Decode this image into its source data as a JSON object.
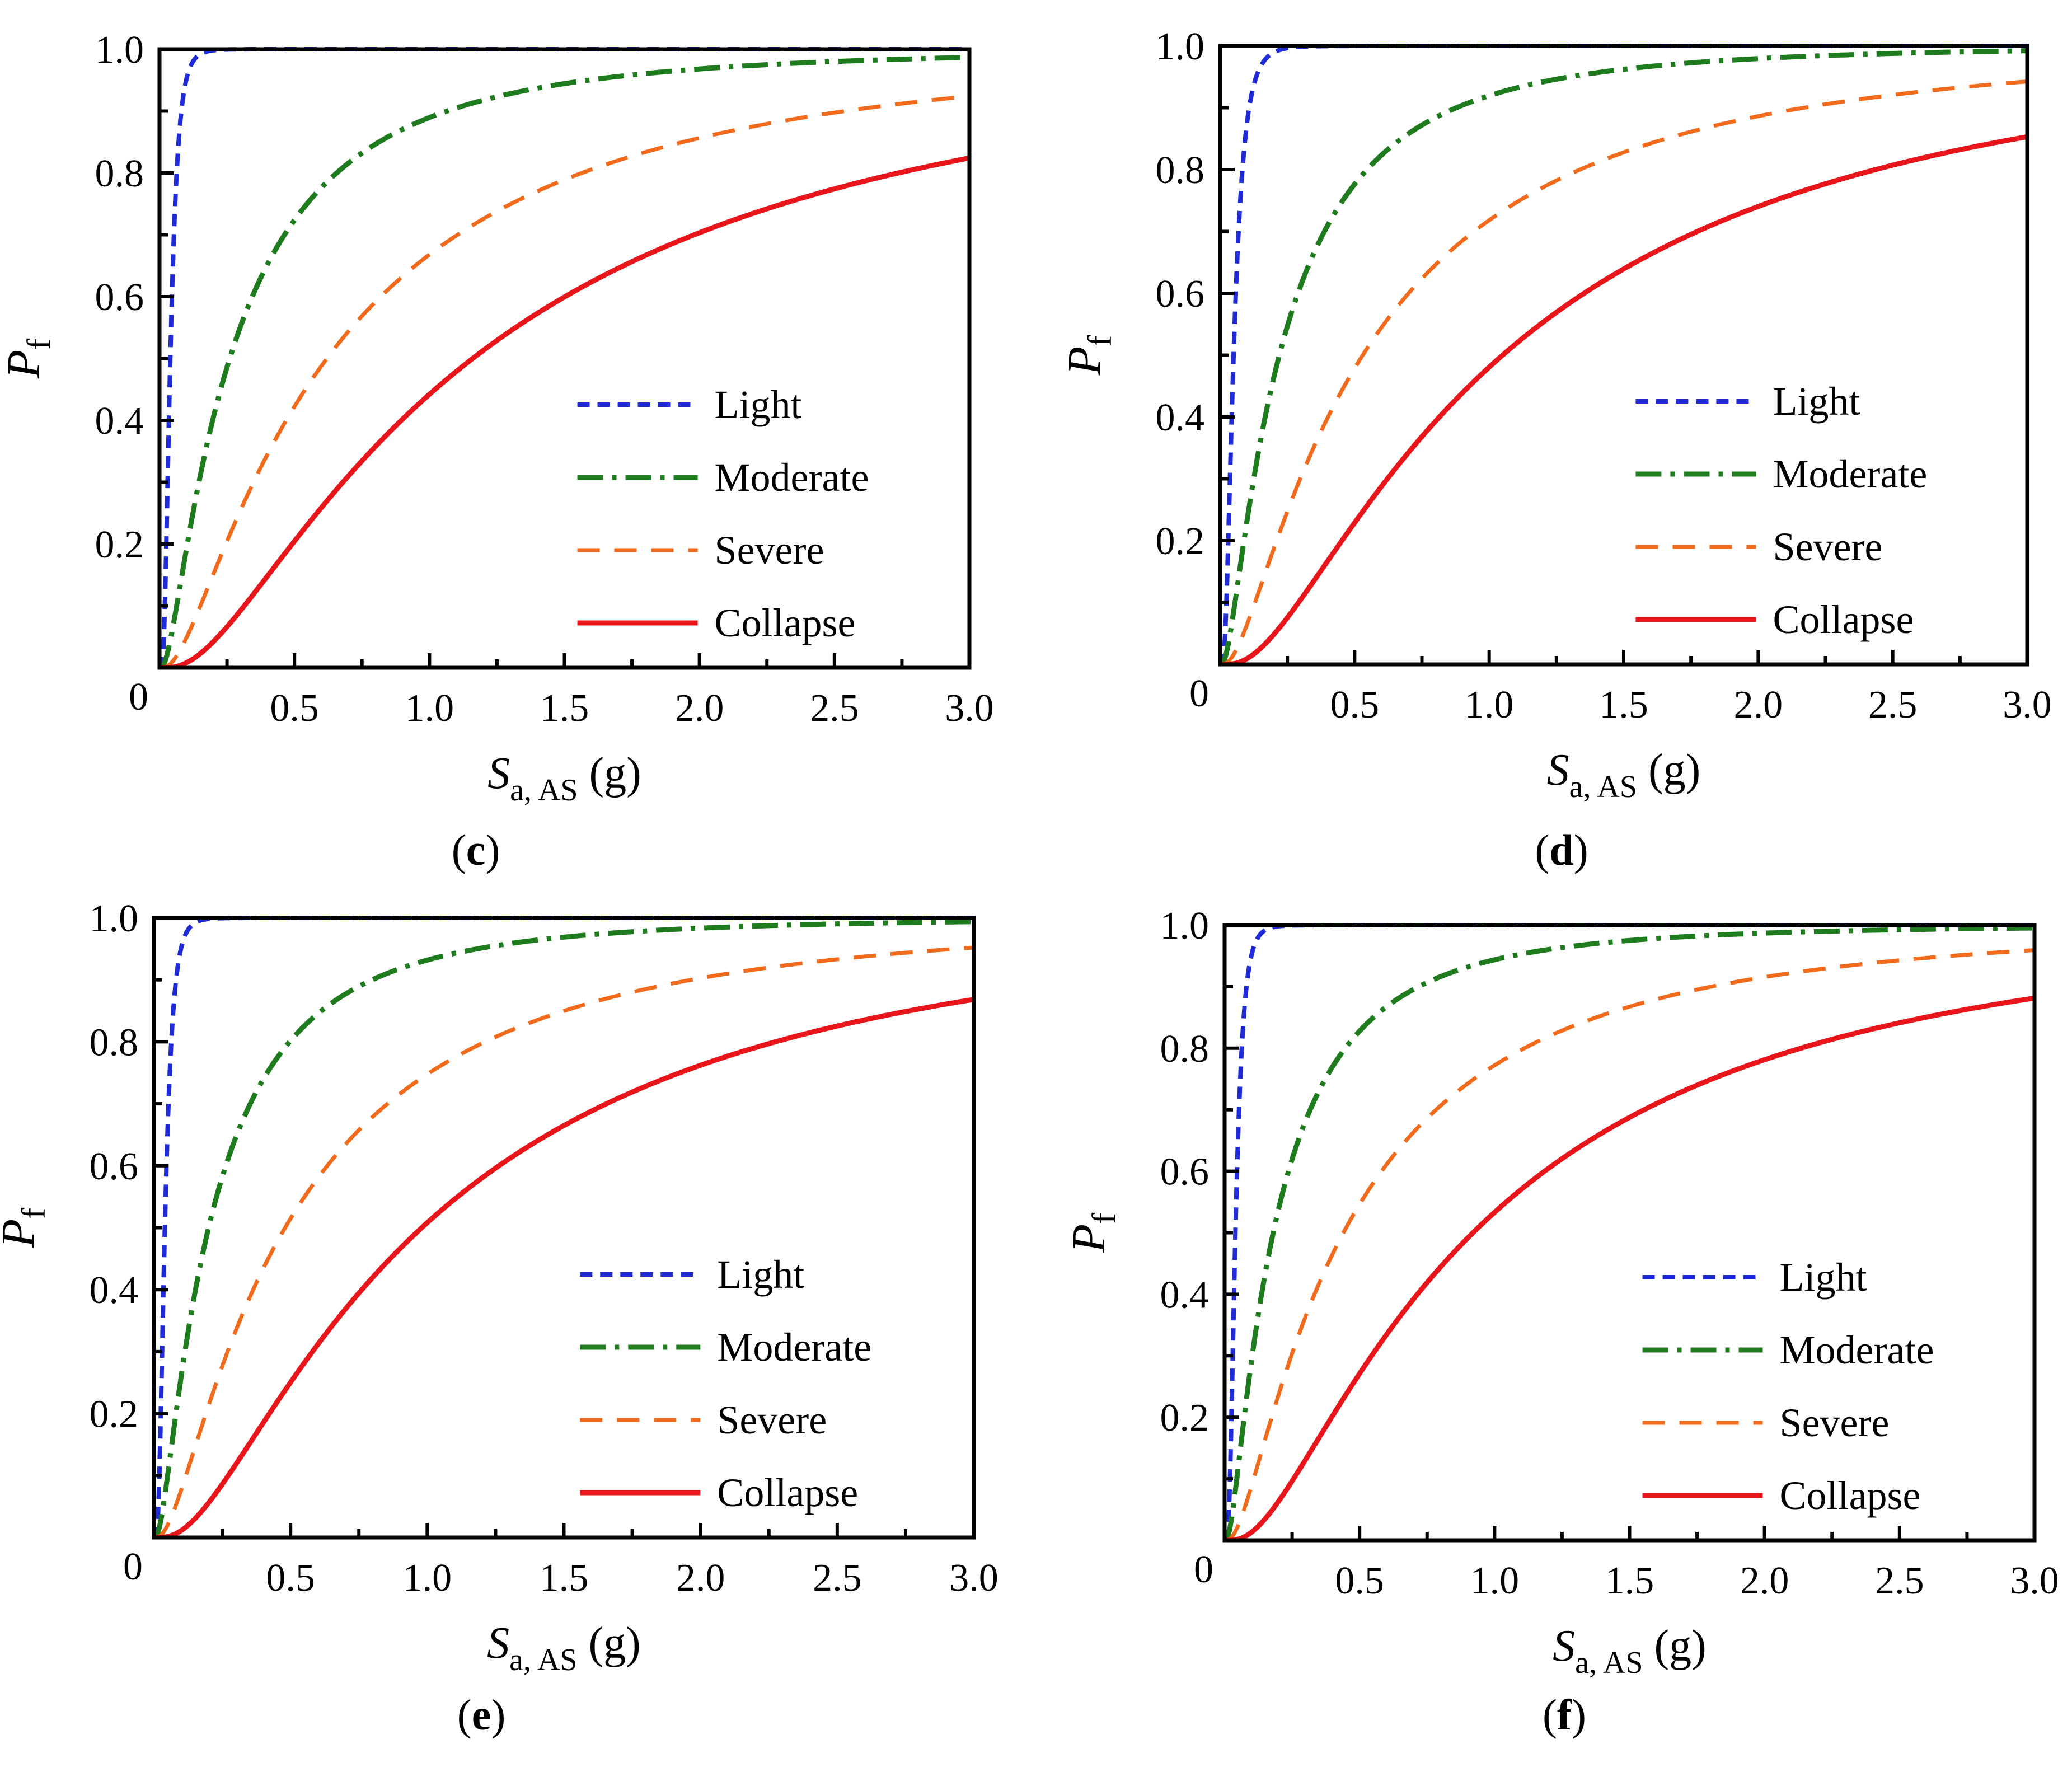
{
  "figure": {
    "panels_note": "Fragility curves, four panels"
  },
  "legend_entries": [
    "Light",
    "Moderate",
    "Severe",
    "Collapse"
  ],
  "colors": {
    "Light": "#1f2bd6",
    "Moderate": "#1e7b1e",
    "Severe": "#f26a1b",
    "Collapse": "#e8151b",
    "axis": "#000000"
  },
  "chart_data": [
    {
      "panel_label": "c",
      "type": "line",
      "xlabel_main": "S",
      "xlabel_sub": "a, AS",
      "xlabel_unit": " (g)",
      "ylabel_main": "P",
      "ylabel_sub": "f",
      "xlim": [
        0,
        3.0
      ],
      "ylim": [
        0,
        1.0
      ],
      "x_ticks": [
        "0",
        "0.5",
        "1.0",
        "1.5",
        "2.0",
        "2.5",
        "3.0"
      ],
      "y_ticks": [
        "0.2",
        "0.4",
        "0.6",
        "0.8",
        "1.0"
      ],
      "legend": "lower-right",
      "series": [
        {
          "name": "Light",
          "median": 0.04,
          "beta": 0.55
        },
        {
          "name": "Moderate",
          "median": 0.26,
          "beta": 1.1
        },
        {
          "name": "Severe",
          "median": 0.62,
          "beta": 1.1
        },
        {
          "name": "Collapse",
          "median": 1.16,
          "beta": 1.02
        }
      ]
    },
    {
      "panel_label": "d",
      "type": "line",
      "xlabel_main": "S",
      "xlabel_sub": "a, AS",
      "xlabel_unit": " (g)",
      "ylabel_main": "P",
      "ylabel_sub": "f",
      "xlim": [
        0,
        3.0
      ],
      "ylim": [
        0,
        1.0
      ],
      "x_ticks": [
        "0",
        "0.5",
        "1.0",
        "1.5",
        "2.0",
        "2.5",
        "3.0"
      ],
      "y_ticks": [
        "0.2",
        "0.4",
        "0.6",
        "0.8",
        "1.0"
      ],
      "legend": "lower-right",
      "series": [
        {
          "name": "Light",
          "median": 0.05,
          "beta": 0.6
        },
        {
          "name": "Moderate",
          "median": 0.22,
          "beta": 1.08
        },
        {
          "name": "Severe",
          "median": 0.53,
          "beta": 1.1
        },
        {
          "name": "Collapse",
          "median": 1.05,
          "beta": 1.0
        }
      ]
    },
    {
      "panel_label": "e",
      "type": "line",
      "xlabel_main": "S",
      "xlabel_sub": "a, AS",
      "xlabel_unit": " (g)",
      "ylabel_main": "P",
      "ylabel_sub": "f",
      "xlim": [
        0,
        3.0
      ],
      "ylim": [
        0,
        1.0
      ],
      "x_ticks": [
        "0",
        "0.5",
        "1.0",
        "1.5",
        "2.0",
        "2.5",
        "3.0"
      ],
      "y_ticks": [
        "0.2",
        "0.4",
        "0.6",
        "0.8",
        "1.0"
      ],
      "legend": "lower-right",
      "series": [
        {
          "name": "Light",
          "median": 0.04,
          "beta": 0.55
        },
        {
          "name": "Moderate",
          "median": 0.2,
          "beta": 1.08
        },
        {
          "name": "Severe",
          "median": 0.48,
          "beta": 1.1
        },
        {
          "name": "Collapse",
          "median": 0.98,
          "beta": 1.0
        }
      ]
    },
    {
      "panel_label": "f",
      "type": "line",
      "xlabel_main": "S",
      "xlabel_sub": "a, AS",
      "xlabel_unit": " (g)",
      "ylabel_main": "P",
      "ylabel_sub": "f",
      "xlim": [
        0,
        3.0
      ],
      "ylim": [
        0,
        1.0
      ],
      "x_ticks": [
        "0",
        "0.5",
        "1.0",
        "1.5",
        "2.0",
        "2.5",
        "3.0"
      ],
      "y_ticks": [
        "0.2",
        "0.4",
        "0.6",
        "0.8",
        "1.0"
      ],
      "legend": "lower-right",
      "series": [
        {
          "name": "Light",
          "median": 0.04,
          "beta": 0.55
        },
        {
          "name": "Moderate",
          "median": 0.18,
          "beta": 1.08
        },
        {
          "name": "Severe",
          "median": 0.44,
          "beta": 1.1
        },
        {
          "name": "Collapse",
          "median": 0.92,
          "beta": 1.0
        }
      ]
    }
  ]
}
